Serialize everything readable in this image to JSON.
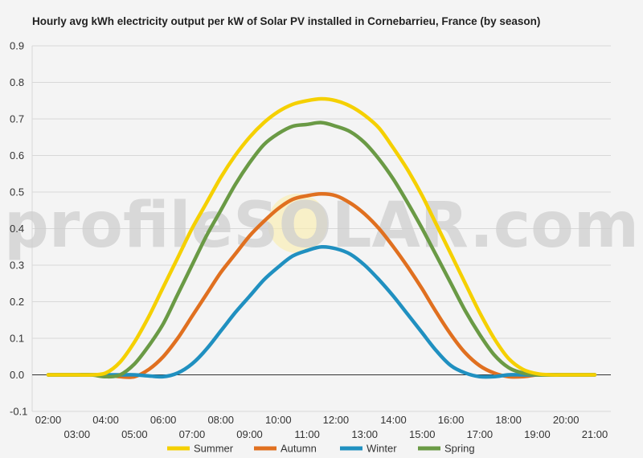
{
  "chart_data": {
    "type": "line",
    "title": "Hourly avg kWh electricity output per kW of Solar PV installed in Cornebarrieu, France (by season)",
    "xlabel": "",
    "ylabel": "",
    "ylim": [
      -0.1,
      0.9
    ],
    "yticks": [
      "-0.1",
      "0.0",
      "0.1",
      "0.2",
      "0.3",
      "0.4",
      "0.5",
      "0.6",
      "0.7",
      "0.8",
      "0.9"
    ],
    "xlim": [
      2,
      21
    ],
    "xticks_upper": [
      "02:00",
      "04:00",
      "06:00",
      "08:00",
      "10:00",
      "12:00",
      "14:00",
      "16:00",
      "18:00",
      "20:00"
    ],
    "xticks_lower": [
      "03:00",
      "05:00",
      "07:00",
      "09:00",
      "11:00",
      "13:00",
      "15:00",
      "17:00",
      "19:00",
      "21:00"
    ],
    "x": [
      2,
      2.5,
      3,
      3.5,
      4,
      4.5,
      5,
      5.5,
      6,
      6.5,
      7,
      7.5,
      8,
      8.5,
      9,
      9.5,
      10,
      10.5,
      11,
      11.5,
      12,
      12.5,
      13,
      13.5,
      14,
      14.5,
      15,
      15.5,
      16,
      16.5,
      17,
      17.5,
      18,
      18.5,
      19,
      19.5,
      20,
      20.5,
      21
    ],
    "grid": true,
    "legend_position": "bottom",
    "watermark": "profileSOLAR.com",
    "series": [
      {
        "name": "Summer",
        "color": "#f5d000",
        "values": [
          0,
          0,
          0,
          0,
          0.005,
          0.035,
          0.09,
          0.16,
          0.24,
          0.32,
          0.4,
          0.47,
          0.54,
          0.6,
          0.65,
          0.69,
          0.72,
          0.74,
          0.75,
          0.755,
          0.75,
          0.735,
          0.71,
          0.675,
          0.62,
          0.56,
          0.49,
          0.41,
          0.33,
          0.25,
          0.17,
          0.1,
          0.045,
          0.015,
          0.003,
          0,
          0,
          0,
          0
        ]
      },
      {
        "name": "Autumn",
        "color": "#e07020",
        "values": [
          0,
          0,
          0,
          0,
          0,
          -0.005,
          -0.005,
          0.015,
          0.05,
          0.1,
          0.16,
          0.22,
          0.28,
          0.33,
          0.38,
          0.42,
          0.455,
          0.48,
          0.49,
          0.495,
          0.49,
          0.47,
          0.44,
          0.4,
          0.35,
          0.295,
          0.235,
          0.17,
          0.11,
          0.06,
          0.025,
          0.005,
          -0.005,
          -0.005,
          0,
          0,
          0,
          0,
          0
        ]
      },
      {
        "name": "Winter",
        "color": "#2090c0",
        "values": [
          0,
          0,
          0,
          0,
          0,
          0,
          0,
          -0.003,
          -0.005,
          0.005,
          0.03,
          0.07,
          0.12,
          0.17,
          0.215,
          0.26,
          0.295,
          0.325,
          0.34,
          0.35,
          0.345,
          0.33,
          0.3,
          0.26,
          0.215,
          0.165,
          0.115,
          0.065,
          0.025,
          0.005,
          -0.005,
          -0.005,
          0,
          0,
          0,
          0,
          0,
          0,
          0
        ]
      },
      {
        "name": "Spring",
        "color": "#6a9a45",
        "values": [
          0,
          0,
          0,
          0,
          -0.005,
          0,
          0.03,
          0.08,
          0.14,
          0.22,
          0.3,
          0.38,
          0.45,
          0.52,
          0.58,
          0.63,
          0.66,
          0.68,
          0.685,
          0.69,
          0.68,
          0.665,
          0.635,
          0.59,
          0.535,
          0.47,
          0.4,
          0.325,
          0.25,
          0.175,
          0.11,
          0.055,
          0.02,
          0.005,
          0,
          0,
          0,
          0,
          0
        ]
      }
    ]
  }
}
